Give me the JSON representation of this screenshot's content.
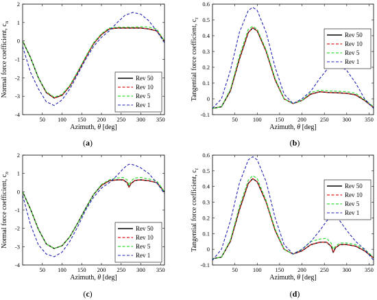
{
  "chart_data": [
    {
      "type": "line",
      "panel_tag": "(a)",
      "xlabel": "Azimuth, θ [deg]",
      "ylabel": "Normal force coefficient,  c",
      "ylabel_sub": "n",
      "xlim": [
        0,
        360
      ],
      "ylim": [
        -4,
        2
      ],
      "xticks": [
        50,
        100,
        150,
        200,
        250,
        300,
        350
      ],
      "yticks": [
        -4,
        -3,
        -2,
        -1,
        0,
        1,
        2
      ],
      "legend": "lower-right",
      "x": [
        0,
        20,
        40,
        60,
        80,
        100,
        120,
        140,
        160,
        180,
        200,
        220,
        240,
        260,
        280,
        300,
        320,
        340,
        360
      ],
      "series": [
        {
          "name": "Rev 50",
          "color": "#000000",
          "dash": "solid",
          "width": 1.4,
          "values": [
            0.0,
            -0.9,
            -2.0,
            -2.8,
            -3.1,
            -2.95,
            -2.45,
            -1.7,
            -0.9,
            -0.15,
            0.35,
            0.65,
            0.7,
            0.7,
            0.7,
            0.7,
            0.65,
            0.55,
            0.0
          ]
        },
        {
          "name": "Rev 10",
          "color": "#e41a1c",
          "dash": "dashed",
          "width": 1.2,
          "values": [
            0.0,
            -0.9,
            -2.0,
            -2.8,
            -3.1,
            -2.95,
            -2.45,
            -1.7,
            -0.9,
            -0.15,
            0.35,
            0.65,
            0.7,
            0.7,
            0.7,
            0.7,
            0.65,
            0.55,
            0.0
          ]
        },
        {
          "name": "Rev 5",
          "color": "#33dd33",
          "dash": "dashed",
          "width": 1.2,
          "values": [
            0.0,
            -0.9,
            -2.0,
            -2.75,
            -3.05,
            -2.9,
            -2.4,
            -1.65,
            -0.85,
            -0.1,
            0.4,
            0.7,
            0.75,
            0.75,
            0.75,
            0.77,
            0.75,
            0.65,
            0.0
          ]
        },
        {
          "name": "Rev 1",
          "color": "#1f1fb4",
          "dash": "dashed",
          "width": 1.1,
          "values": [
            -0.3,
            -1.7,
            -2.6,
            -3.3,
            -3.5,
            -3.2,
            -2.6,
            -1.8,
            -1.0,
            -0.3,
            0.2,
            0.55,
            1.0,
            1.4,
            1.55,
            1.45,
            1.1,
            0.55,
            -0.1
          ]
        }
      ]
    },
    {
      "type": "line",
      "panel_tag": "(b)",
      "xlabel": "Azimuth, θ [deg]",
      "ylabel": "Tangential force coefficient,  c",
      "ylabel_sub": "t",
      "xlim": [
        0,
        360
      ],
      "ylim": [
        -0.1,
        0.6
      ],
      "xticks": [
        50,
        100,
        150,
        200,
        250,
        300,
        350
      ],
      "yticks": [
        -0.1,
        0,
        0.1,
        0.2,
        0.3,
        0.4,
        0.5,
        0.6
      ],
      "ytick_labels": [
        "-0.1",
        "0",
        "0.1",
        "0.2",
        "0.3",
        "0.4",
        "0.5",
        "0.6"
      ],
      "legend": "top-right",
      "x": [
        0,
        20,
        40,
        60,
        80,
        90,
        100,
        120,
        140,
        160,
        180,
        200,
        220,
        240,
        260,
        280,
        300,
        320,
        340,
        360
      ],
      "series": [
        {
          "name": "Rev 50",
          "color": "#000000",
          "dash": "solid",
          "width": 1.4,
          "values": [
            -0.06,
            -0.05,
            0.05,
            0.25,
            0.42,
            0.45,
            0.43,
            0.3,
            0.12,
            0.0,
            -0.03,
            -0.01,
            0.03,
            0.045,
            0.04,
            0.038,
            0.035,
            0.025,
            -0.01,
            -0.055
          ]
        },
        {
          "name": "Rev 10",
          "color": "#e41a1c",
          "dash": "dashed",
          "width": 1.2,
          "values": [
            -0.06,
            -0.05,
            0.05,
            0.25,
            0.42,
            0.45,
            0.43,
            0.3,
            0.12,
            0.0,
            -0.03,
            -0.01,
            0.03,
            0.045,
            0.04,
            0.038,
            0.035,
            0.025,
            -0.01,
            -0.055
          ]
        },
        {
          "name": "Rev 5",
          "color": "#33dd33",
          "dash": "dashed",
          "width": 1.2,
          "values": [
            -0.06,
            -0.05,
            0.06,
            0.27,
            0.44,
            0.46,
            0.44,
            0.31,
            0.13,
            0.0,
            -0.03,
            -0.01,
            0.04,
            0.055,
            0.05,
            0.048,
            0.045,
            0.035,
            -0.005,
            -0.05
          ]
        },
        {
          "name": "Rev 1",
          "color": "#1f1fb4",
          "dash": "dashed",
          "width": 1.1,
          "values": [
            -0.06,
            0.0,
            0.18,
            0.42,
            0.56,
            0.58,
            0.56,
            0.42,
            0.2,
            0.03,
            -0.03,
            0.0,
            0.05,
            0.13,
            0.2,
            0.22,
            0.18,
            0.1,
            0.0,
            -0.06
          ]
        }
      ]
    },
    {
      "type": "line",
      "panel_tag": "(c)",
      "xlabel": "Azimuth, θ [deg]",
      "ylabel": "Normal force coefficient,  c",
      "ylabel_sub": "n",
      "xlim": [
        0,
        360
      ],
      "ylim": [
        -4,
        2
      ],
      "xticks": [
        50,
        100,
        150,
        200,
        250,
        300,
        350
      ],
      "yticks": [
        -4,
        -3,
        -2,
        -1,
        0,
        1,
        2
      ],
      "legend": "lower-right",
      "x": [
        0,
        20,
        40,
        60,
        80,
        100,
        120,
        140,
        160,
        180,
        200,
        220,
        240,
        255,
        265,
        270,
        275,
        285,
        300,
        320,
        340,
        360
      ],
      "series": [
        {
          "name": "Rev 50",
          "color": "#000000",
          "dash": "solid",
          "width": 1.4,
          "values": [
            0.0,
            -0.95,
            -2.05,
            -2.85,
            -3.1,
            -2.95,
            -2.45,
            -1.7,
            -0.9,
            -0.15,
            0.35,
            0.6,
            0.65,
            0.65,
            0.5,
            0.25,
            0.45,
            0.62,
            0.65,
            0.6,
            0.5,
            0.0
          ]
        },
        {
          "name": "Rev 10",
          "color": "#e41a1c",
          "dash": "dashed",
          "width": 1.2,
          "values": [
            0.0,
            -0.95,
            -2.05,
            -2.85,
            -3.1,
            -2.95,
            -2.45,
            -1.7,
            -0.9,
            -0.15,
            0.35,
            0.6,
            0.65,
            0.65,
            0.5,
            0.25,
            0.45,
            0.62,
            0.65,
            0.6,
            0.5,
            0.0
          ]
        },
        {
          "name": "Rev 5",
          "color": "#33dd33",
          "dash": "dashed",
          "width": 1.2,
          "values": [
            0.0,
            -0.95,
            -2.05,
            -2.85,
            -3.1,
            -2.95,
            -2.45,
            -1.7,
            -0.9,
            -0.15,
            0.4,
            0.65,
            0.75,
            0.78,
            0.65,
            0.35,
            0.6,
            0.75,
            0.78,
            0.7,
            0.6,
            0.0
          ]
        },
        {
          "name": "Rev 1",
          "color": "#1f1fb4",
          "dash": "dashed",
          "width": 1.1,
          "values": [
            -0.2,
            -1.8,
            -2.9,
            -3.4,
            -3.55,
            -3.3,
            -2.7,
            -1.9,
            -1.0,
            -0.3,
            0.2,
            0.5,
            0.9,
            1.25,
            1.45,
            1.5,
            1.5,
            1.45,
            1.3,
            1.0,
            0.5,
            -0.1
          ]
        }
      ]
    },
    {
      "type": "line",
      "panel_tag": "(d)",
      "xlabel": "Azimuth, θ [deg]",
      "ylabel": "Tangential force coefficient,  c",
      "ylabel_sub": "t",
      "xlim": [
        0,
        360
      ],
      "ylim": [
        -0.1,
        0.6
      ],
      "xticks": [
        50,
        100,
        150,
        200,
        250,
        300,
        350
      ],
      "yticks": [
        -0.1,
        0,
        0.1,
        0.2,
        0.3,
        0.4,
        0.5,
        0.6
      ],
      "ytick_labels": [
        "-0.1",
        "0",
        "0.1",
        "0.2",
        "0.3",
        "0.4",
        "0.5",
        "0.6"
      ],
      "legend": "top-right",
      "x": [
        0,
        20,
        40,
        60,
        80,
        90,
        100,
        120,
        140,
        160,
        180,
        200,
        220,
        240,
        255,
        265,
        270,
        275,
        285,
        300,
        320,
        340,
        360
      ],
      "series": [
        {
          "name": "Rev 50",
          "color": "#000000",
          "dash": "solid",
          "width": 1.4,
          "values": [
            -0.06,
            -0.05,
            0.05,
            0.25,
            0.42,
            0.45,
            0.43,
            0.3,
            0.12,
            0.0,
            -0.03,
            -0.01,
            0.03,
            0.045,
            0.045,
            0.02,
            -0.02,
            0.01,
            0.03,
            0.03,
            0.02,
            -0.01,
            -0.055
          ]
        },
        {
          "name": "Rev 10",
          "color": "#e41a1c",
          "dash": "dashed",
          "width": 1.2,
          "values": [
            -0.06,
            -0.05,
            0.05,
            0.25,
            0.42,
            0.45,
            0.43,
            0.3,
            0.12,
            0.0,
            -0.03,
            -0.01,
            0.03,
            0.045,
            0.045,
            0.02,
            -0.02,
            0.01,
            0.03,
            0.03,
            0.02,
            -0.01,
            -0.055
          ]
        },
        {
          "name": "Rev 5",
          "color": "#33dd33",
          "dash": "dashed",
          "width": 1.2,
          "values": [
            -0.06,
            -0.05,
            0.06,
            0.27,
            0.44,
            0.47,
            0.45,
            0.31,
            0.13,
            0.0,
            -0.03,
            0.0,
            0.05,
            0.065,
            0.07,
            0.04,
            0.0,
            0.02,
            0.04,
            0.04,
            0.03,
            0.0,
            -0.05
          ]
        },
        {
          "name": "Rev 1",
          "color": "#1f1fb4",
          "dash": "dashed",
          "width": 1.1,
          "values": [
            -0.07,
            0.0,
            0.18,
            0.42,
            0.57,
            0.59,
            0.57,
            0.43,
            0.2,
            0.03,
            -0.03,
            0.0,
            0.05,
            0.12,
            0.18,
            0.21,
            0.215,
            0.21,
            0.18,
            0.12,
            0.05,
            0.0,
            -0.07
          ]
        }
      ]
    }
  ]
}
